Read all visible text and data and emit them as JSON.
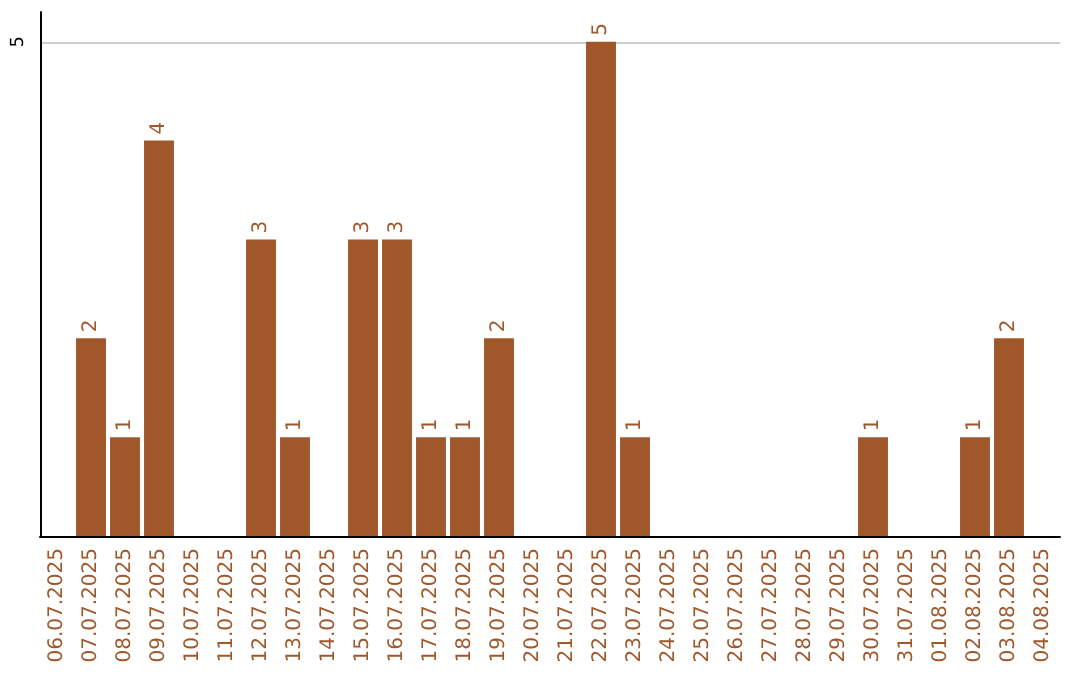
{
  "chart_data": {
    "type": "bar",
    "categories": [
      "06.07.2025",
      "07.07.2025",
      "08.07.2025",
      "09.07.2025",
      "10.07.2025",
      "11.07.2025",
      "12.07.2025",
      "13.07.2025",
      "14.07.2025",
      "15.07.2025",
      "16.07.2025",
      "17.07.2025",
      "18.07.2025",
      "19.07.2025",
      "20.07.2025",
      "21.07.2025",
      "22.07.2025",
      "23.07.2025",
      "24.07.2025",
      "25.07.2025",
      "26.07.2025",
      "27.07.2025",
      "28.07.2025",
      "29.07.2025",
      "30.07.2025",
      "31.07.2025",
      "01.08.2025",
      "02.08.2025",
      "03.08.2025",
      "04.08.2025"
    ],
    "values": [
      0,
      2,
      1,
      4,
      0,
      0,
      3,
      1,
      0,
      3,
      3,
      1,
      1,
      2,
      0,
      0,
      5,
      1,
      0,
      0,
      0,
      0,
      0,
      0,
      1,
      0,
      0,
      1,
      2,
      0
    ],
    "value_labels": [
      null,
      "2",
      "1",
      "4",
      null,
      null,
      "3",
      "1",
      null,
      "3",
      "3",
      "1",
      "1",
      "2",
      null,
      null,
      "5",
      "1",
      null,
      null,
      null,
      null,
      null,
      null,
      "1",
      null,
      null,
      "1",
      "2",
      null
    ],
    "color": "#a0572a",
    "ylim": [
      0,
      5.3
    ],
    "yticks": [
      5
    ],
    "grid": "y"
  }
}
